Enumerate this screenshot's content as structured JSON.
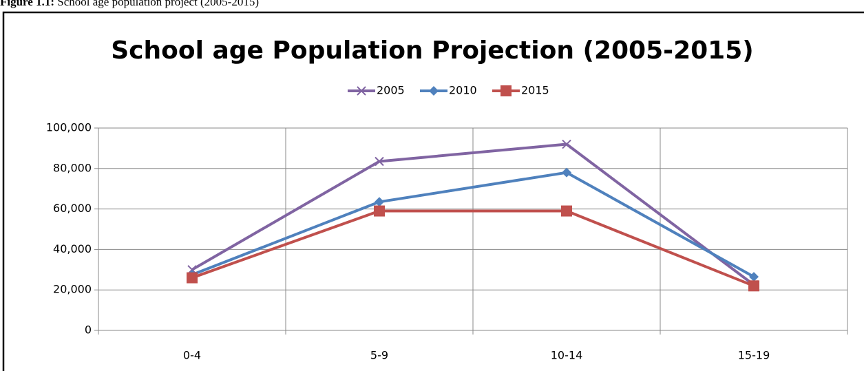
{
  "caption": {
    "label": "Figure 1.1:",
    "text": "School age population project (2005-2015)"
  },
  "chart_data": {
    "type": "line",
    "title": "School age Population Projection (2005-2015)",
    "categories": [
      "0-4",
      "5-9",
      "10-14",
      "15-19"
    ],
    "series": [
      {
        "name": "2005",
        "color": "#8064a2",
        "marker": "x",
        "values": [
          30000,
          83500,
          92000,
          22500
        ]
      },
      {
        "name": "2010",
        "color": "#4f81bd",
        "marker": "diamond",
        "values": [
          27500,
          63500,
          78000,
          26500
        ]
      },
      {
        "name": "2015",
        "color": "#c0504d",
        "marker": "square",
        "values": [
          26000,
          59000,
          59000,
          22000
        ]
      }
    ],
    "ylim": [
      0,
      100000
    ],
    "yticks": [
      0,
      {
        "value": 20000,
        "label": "20,000"
      },
      {
        "value": 40000,
        "label": "40,000"
      },
      {
        "value": 60000,
        "label": "60,000"
      },
      {
        "value": 80000,
        "label": "80,000"
      },
      {
        "value": 100000,
        "label": "100,000"
      }
    ],
    "grid": true,
    "legend": "top"
  }
}
